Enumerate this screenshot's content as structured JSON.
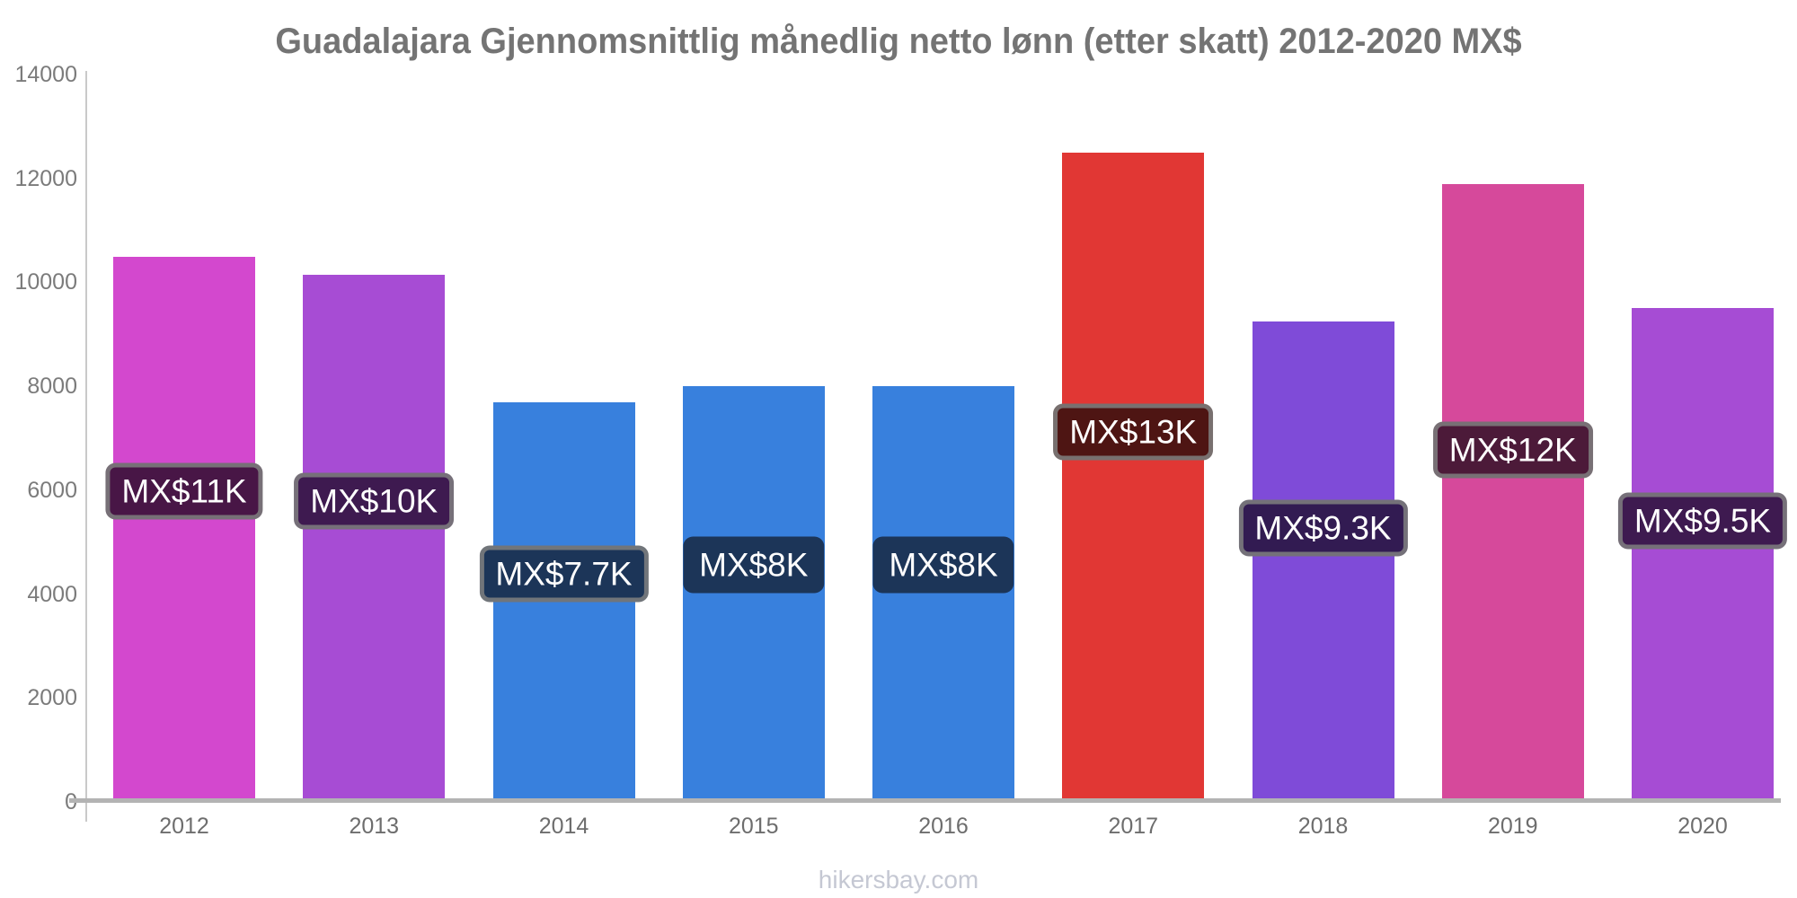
{
  "chart_data": {
    "type": "bar",
    "title": "Guadalajara Gjennomsnittlig månedlig netto lønn (etter skatt) 2012-2020 MX$",
    "categories": [
      "2012",
      "2013",
      "2014",
      "2015",
      "2016",
      "2017",
      "2018",
      "2019",
      "2020"
    ],
    "values": [
      10500,
      10150,
      7700,
      8000,
      8000,
      12500,
      9250,
      11900,
      9500
    ],
    "bar_labels": [
      "MX$11K",
      "MX$10K",
      "MX$7.7K",
      "MX$8K",
      "MX$8K",
      "MX$13K",
      "MX$9.3K",
      "MX$12K",
      "MX$9.5K"
    ],
    "bar_colors": [
      "#d348ce",
      "#a74cd4",
      "#3880dd",
      "#3880dd",
      "#3880dd",
      "#e13734",
      "#7f4bd8",
      "#d6499b",
      "#a64cd4"
    ],
    "badge_colors": [
      "#481646",
      "#3e1a50",
      "#1c3558",
      "#1c3558",
      "#1c3558",
      "#4e1513",
      "#321b52",
      "#4c1a39",
      "#3e1a50"
    ],
    "badge_has_border": [
      true,
      true,
      true,
      false,
      false,
      true,
      true,
      true,
      true
    ],
    "xlabel": "",
    "ylabel": "",
    "ylim": [
      0,
      14000
    ],
    "yticks": [
      0,
      2000,
      4000,
      6000,
      8000,
      10000,
      12000,
      14000
    ],
    "grid": false,
    "legend": false
  },
  "footer": {
    "source": "hikersbay.com"
  },
  "colors": {
    "background": "#ffffff",
    "title": "#747474",
    "y_tick_label": "#7b7b7b",
    "x_tick_label": "#6d6d6d",
    "y_axis_line": "#c9c9c9",
    "x_baseline": "#b3b3b3",
    "badge_text": "#ffffff",
    "badge_border": "rgba(128,128,128,0.85)",
    "footer": "#c5c8d3"
  }
}
